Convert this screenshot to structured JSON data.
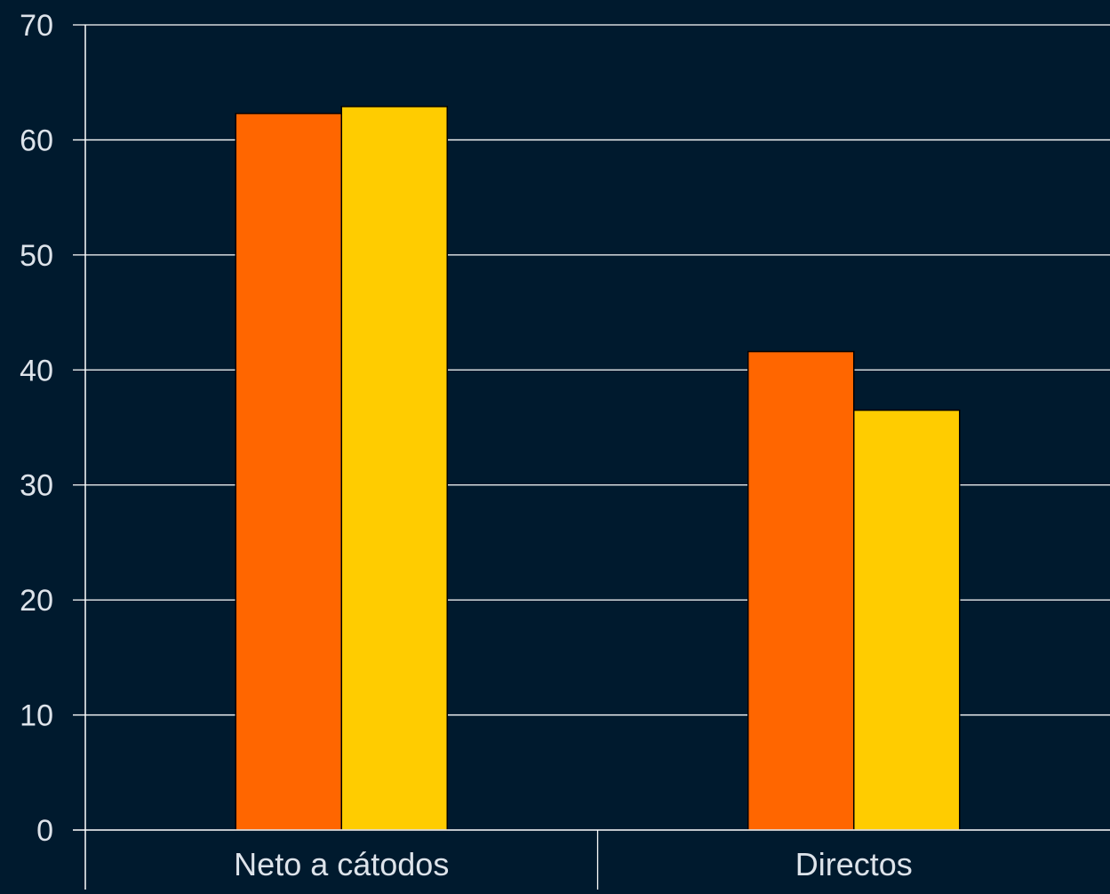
{
  "chart_data": {
    "type": "bar",
    "title": "",
    "xlabel": "",
    "ylabel": "",
    "categories": [
      "Neto a cátodos",
      "Directos"
    ],
    "series": [
      {
        "color": "#ff6600",
        "values": [
          62.3,
          41.6
        ]
      },
      {
        "color": "#ffcc00",
        "values": [
          62.9,
          36.5
        ]
      }
    ],
    "ylim": [
      0,
      70
    ],
    "yticks": [
      0,
      10,
      20,
      30,
      40,
      50,
      60,
      70
    ],
    "grid": true,
    "legend": "none"
  },
  "colors": {
    "background": "#001a2e",
    "axis": "#ffffff",
    "gridline": "#ffffff",
    "text": "#dde3ea",
    "bar_border": "#000000"
  }
}
